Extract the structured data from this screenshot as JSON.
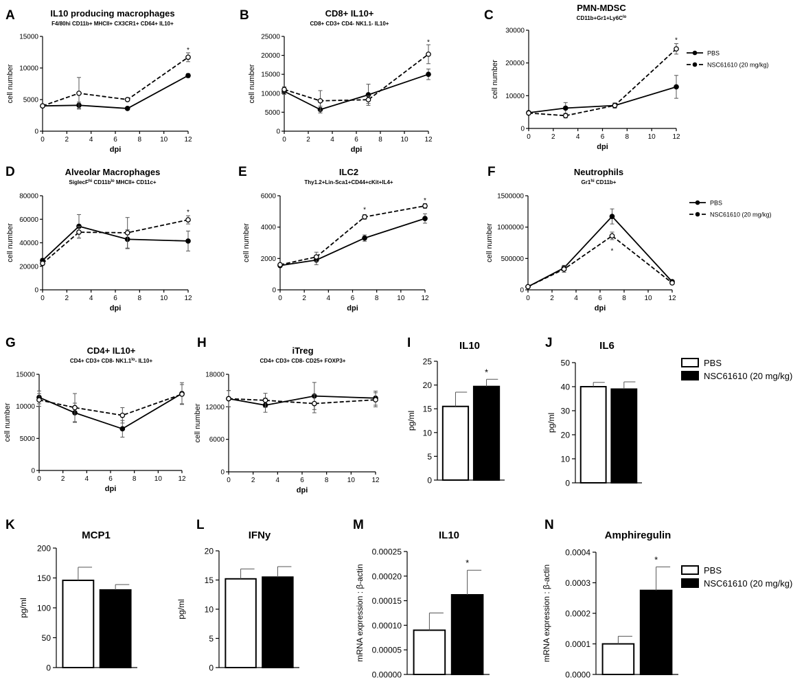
{
  "legend_line": {
    "pbs": "PBS",
    "nsc": "NSC61610 (20 mg/kg)"
  },
  "legend_bar": {
    "pbs": "PBS",
    "nsc": "NSC61610 (20 mg/kg)"
  },
  "colors": {
    "pbs_fill": "#ffffff",
    "nsc_fill": "#000000",
    "ink": "#000000"
  },
  "chart_data": [
    {
      "id": "A",
      "type": "line",
      "letter": "A",
      "title": "IL10 producing macrophages",
      "subtitle": "F4/80hi CD11b+ MHCII+ CX3CR1+ CD64+ IL10+",
      "xlabel": "dpi",
      "ylabel": "cell number",
      "xlim": [
        0,
        12
      ],
      "ylim": [
        0,
        15000
      ],
      "xticks": [
        0,
        2,
        4,
        6,
        8,
        10,
        12
      ],
      "yticks": [
        0,
        5000,
        10000,
        15000
      ],
      "x": [
        0,
        3,
        7,
        12
      ],
      "series": [
        {
          "name": "PBS",
          "values": [
            4000,
            4100,
            3600,
            8800
          ],
          "err": [
            200,
            500,
            150,
            300
          ]
        },
        {
          "name": "NSC61610 (20 mg/kg)",
          "values": [
            4000,
            6000,
            5000,
            11700
          ],
          "err": [
            200,
            2500,
            200,
            700
          ]
        }
      ],
      "sig": [
        {
          "x": 12,
          "y": 12800,
          "label": "*"
        }
      ]
    },
    {
      "id": "B",
      "type": "line",
      "letter": "B",
      "title": "CD8+ IL10+",
      "subtitle": "CD8+ CD3+ CD4- NK1.1- IL10+",
      "xlabel": "dpi",
      "ylabel": "cell number",
      "xlim": [
        0,
        12
      ],
      "ylim": [
        0,
        25000
      ],
      "xticks": [
        0,
        2,
        4,
        6,
        8,
        10,
        12
      ],
      "yticks": [
        0,
        5000,
        10000,
        15000,
        20000,
        25000
      ],
      "x": [
        0,
        3,
        7,
        12
      ],
      "series": [
        {
          "name": "PBS",
          "values": [
            10500,
            5700,
            9600,
            15000
          ],
          "err": [
            800,
            900,
            2800,
            1400
          ]
        },
        {
          "name": "NSC61610 (20 mg/kg)",
          "values": [
            11000,
            8000,
            8300,
            20300
          ],
          "err": [
            700,
            2700,
            1000,
            2500
          ]
        }
      ],
      "sig": [
        {
          "x": 12,
          "y": 23500,
          "label": "*"
        }
      ]
    },
    {
      "id": "C",
      "type": "line",
      "letter": "C",
      "title": "PMN-MDSC",
      "subtitle": "CD11b+Gr1+Ly6C",
      "subtitle_sup": "lo",
      "xlabel": "dpi",
      "ylabel": "cell number",
      "xlim": [
        0,
        12
      ],
      "ylim": [
        0,
        30000
      ],
      "xticks": [
        0,
        2,
        4,
        6,
        8,
        10,
        12
      ],
      "yticks": [
        0,
        10000,
        20000,
        30000
      ],
      "x": [
        0,
        3,
        7,
        12
      ],
      "series": [
        {
          "name": "PBS",
          "values": [
            4800,
            6200,
            7000,
            12700
          ],
          "err": [
            300,
            1700,
            600,
            3500
          ]
        },
        {
          "name": "NSC61610 (20 mg/kg)",
          "values": [
            4700,
            3900,
            7000,
            24300
          ],
          "err": [
            300,
            700,
            800,
            1600
          ]
        }
      ],
      "sig": [
        {
          "x": 12,
          "y": 27000,
          "label": "*"
        }
      ]
    },
    {
      "id": "D",
      "type": "line",
      "letter": "D",
      "title": "Alveolar Macrophages",
      "subtitle_pre": "SiglecF",
      "subtitle_sup": "hi",
      "subtitle_post": " CD11b",
      "subtitle_sup2": "lo",
      "subtitle_end": " MHCII+ CD11c+",
      "xlabel": "dpi",
      "ylabel": "cell number",
      "xlim": [
        0,
        12
      ],
      "ylim": [
        0,
        80000
      ],
      "xticks": [
        0,
        2,
        4,
        6,
        8,
        10,
        12
      ],
      "yticks": [
        0,
        20000,
        40000,
        60000,
        80000
      ],
      "x": [
        0,
        3,
        7,
        12
      ],
      "series": [
        {
          "name": "PBS",
          "values": [
            25000,
            54000,
            43000,
            41500
          ],
          "err": [
            1500,
            10000,
            8000,
            8500
          ]
        },
        {
          "name": "NSC61610 (20 mg/kg)",
          "values": [
            22500,
            49000,
            48500,
            59500
          ],
          "err": [
            1500,
            5000,
            13000,
            3500
          ]
        }
      ],
      "sig": [
        {
          "x": 12,
          "y": 66000,
          "label": "*"
        }
      ]
    },
    {
      "id": "E",
      "type": "line",
      "letter": "E",
      "title": "ILC2",
      "subtitle": "Thy1.2+Lin-Sca1+CD44+cKit+IL4+",
      "xlabel": "dpi",
      "ylabel": "cell number",
      "xlim": [
        0,
        12
      ],
      "ylim": [
        0,
        6000
      ],
      "xticks": [
        0,
        2,
        4,
        6,
        8,
        10,
        12
      ],
      "yticks": [
        0,
        2000,
        4000,
        6000
      ],
      "x": [
        0,
        3,
        7,
        12
      ],
      "series": [
        {
          "name": "PBS",
          "values": [
            1550,
            1900,
            3300,
            4550
          ],
          "err": [
            100,
            300,
            200,
            300
          ]
        },
        {
          "name": "NSC61610 (20 mg/kg)",
          "values": [
            1600,
            2100,
            4650,
            5350
          ],
          "err": [
            100,
            300,
            150,
            150
          ]
        }
      ],
      "sig": [
        {
          "x": 7,
          "y": 5100,
          "label": "*"
        },
        {
          "x": 12,
          "y": 5700,
          "label": "*"
        }
      ]
    },
    {
      "id": "F",
      "type": "line",
      "letter": "F",
      "title": "Neutrophils",
      "subtitle": "Gr1",
      "subtitle_sup": "hi",
      "subtitle_post": " CD11b+",
      "xlabel": "dpi",
      "ylabel": "cell number",
      "xlim": [
        0,
        12
      ],
      "ylim": [
        0,
        1500000
      ],
      "xticks": [
        0,
        2,
        4,
        6,
        8,
        10,
        12
      ],
      "yticks": [
        0,
        500000,
        1000000,
        1500000
      ],
      "x": [
        0,
        3,
        7,
        12
      ],
      "series": [
        {
          "name": "PBS",
          "values": [
            50000,
            350000,
            1170000,
            130000
          ],
          "err": [
            10000,
            40000,
            120000,
            20000
          ]
        },
        {
          "name": "NSC61610 (20 mg/kg)",
          "values": [
            50000,
            330000,
            860000,
            110000
          ],
          "err": [
            10000,
            50000,
            60000,
            20000
          ]
        }
      ],
      "sig": [
        {
          "x": 7,
          "y": 620000,
          "label": "*"
        }
      ]
    },
    {
      "id": "G",
      "type": "line",
      "letter": "G",
      "title": "CD4+ IL10+",
      "subtitle": "CD4+ CD3+ CD8- NK1.1",
      "subtitle_sup": "lo",
      "subtitle_post": "- IL10+",
      "xlabel": "dpi",
      "ylabel": "cell number",
      "xlim": [
        0,
        12
      ],
      "ylim": [
        0,
        15000
      ],
      "xticks": [
        0,
        2,
        4,
        6,
        8,
        10,
        12
      ],
      "yticks": [
        0,
        5000,
        10000,
        15000
      ],
      "x": [
        0,
        3,
        7,
        12
      ],
      "series": [
        {
          "name": "PBS",
          "values": [
            11400,
            9000,
            6500,
            12000
          ],
          "err": [
            1000,
            1500,
            1300,
            1700
          ]
        },
        {
          "name": "NSC61610 (20 mg/kg)",
          "values": [
            11000,
            9800,
            8600,
            11900
          ],
          "err": [
            1000,
            2200,
            1200,
            1500
          ]
        }
      ],
      "sig": []
    },
    {
      "id": "H",
      "type": "line",
      "letter": "H",
      "title": "iTreg",
      "subtitle": "CD4+ CD3+ CD8-  CD25+ FOXP3+",
      "xlabel": "dpi",
      "ylabel": "cell number",
      "xlim": [
        0,
        12
      ],
      "ylim": [
        0,
        18000
      ],
      "xticks": [
        0,
        2,
        4,
        6,
        8,
        10,
        12
      ],
      "yticks": [
        0,
        6000,
        12000,
        18000
      ],
      "x": [
        0,
        3,
        7,
        12
      ],
      "series": [
        {
          "name": "PBS",
          "values": [
            13500,
            12300,
            14000,
            13600
          ],
          "err": [
            1500,
            1300,
            2500,
            1300
          ]
        },
        {
          "name": "NSC61610 (20 mg/kg)",
          "values": [
            13500,
            13200,
            12600,
            13300
          ],
          "err": [
            1500,
            1300,
            1700,
            1300
          ]
        }
      ],
      "sig": []
    },
    {
      "id": "I",
      "type": "bar",
      "letter": "I",
      "title": "IL10",
      "ylabel": "pg/ml",
      "ylim": [
        0,
        25
      ],
      "yticks": [
        0,
        5,
        10,
        15,
        20,
        25
      ],
      "ytick_labels": [
        "0",
        "5",
        "10",
        "15",
        "20",
        "25"
      ],
      "categories": [
        "PBS",
        "NSC61610 (20 mg/kg)"
      ],
      "values": [
        15.5,
        19.7
      ],
      "err": [
        3.0,
        1.5
      ],
      "sig": [
        null,
        "*"
      ]
    },
    {
      "id": "J",
      "type": "bar",
      "letter": "J",
      "title": "IL6",
      "ylabel": "pg/ml",
      "ylim": [
        0,
        50
      ],
      "yticks": [
        0,
        10,
        20,
        30,
        40,
        50
      ],
      "ytick_labels": [
        "0",
        "10",
        "20",
        "30",
        "40",
        "50"
      ],
      "categories": [
        "PBS",
        "NSC61610 (20 mg/kg)"
      ],
      "values": [
        40,
        39
      ],
      "err": [
        1.8,
        3.0
      ],
      "sig": [
        null,
        null
      ]
    },
    {
      "id": "K",
      "type": "bar",
      "letter": "K",
      "title": "MCP1",
      "ylabel": "pg/ml",
      "ylim": [
        0,
        200
      ],
      "yticks": [
        0,
        50,
        100,
        150,
        200
      ],
      "ytick_labels": [
        "0",
        "50",
        "100",
        "150",
        "200"
      ],
      "categories": [
        "PBS",
        "NSC61610 (20 mg/kg)"
      ],
      "values": [
        146,
        130
      ],
      "err": [
        22,
        9
      ],
      "sig": [
        null,
        null
      ]
    },
    {
      "id": "L",
      "type": "bar",
      "letter": "L",
      "title": "IFNy",
      "ylabel": "pg/ml",
      "ylim": [
        0,
        20
      ],
      "yticks": [
        0,
        5,
        10,
        15,
        20
      ],
      "ytick_labels": [
        "0",
        "5",
        "10",
        "15",
        "20"
      ],
      "categories": [
        "PBS",
        "NSC61610 (20 mg/kg)"
      ],
      "values": [
        15.2,
        15.5
      ],
      "err": [
        1.7,
        1.8
      ],
      "sig": [
        null,
        null
      ]
    },
    {
      "id": "M",
      "type": "bar",
      "letter": "M",
      "title": "IL10",
      "ylabel": "mRNA expression : β-actin",
      "ylim": [
        0,
        0.00025
      ],
      "yticks": [
        0,
        5e-05,
        0.0001,
        0.00015,
        0.0002,
        0.00025
      ],
      "ytick_labels": [
        "0.00000",
        "0.00005",
        "0.00010",
        "0.00015",
        "0.00020",
        "0.00025"
      ],
      "categories": [
        "PBS",
        "NSC61610 (20 mg/kg)"
      ],
      "values": [
        9e-05,
        0.000162
      ],
      "err": [
        3.5e-05,
        5e-05
      ],
      "sig": [
        null,
        "*"
      ]
    },
    {
      "id": "N",
      "type": "bar",
      "letter": "N",
      "title": "Amphiregulin",
      "ylabel": "mRNA expression : β-actin",
      "ylim": [
        0,
        0.0004
      ],
      "yticks": [
        0,
        0.0001,
        0.0002,
        0.0003,
        0.0004
      ],
      "ytick_labels": [
        "0.0000",
        "0.0001",
        "0.0002",
        "0.0003",
        "0.0004"
      ],
      "categories": [
        "PBS",
        "NSC61610 (20 mg/kg)"
      ],
      "values": [
        0.0001,
        0.000275
      ],
      "err": [
        2.5e-05,
        7.7e-05
      ],
      "sig": [
        null,
        "*"
      ]
    }
  ]
}
